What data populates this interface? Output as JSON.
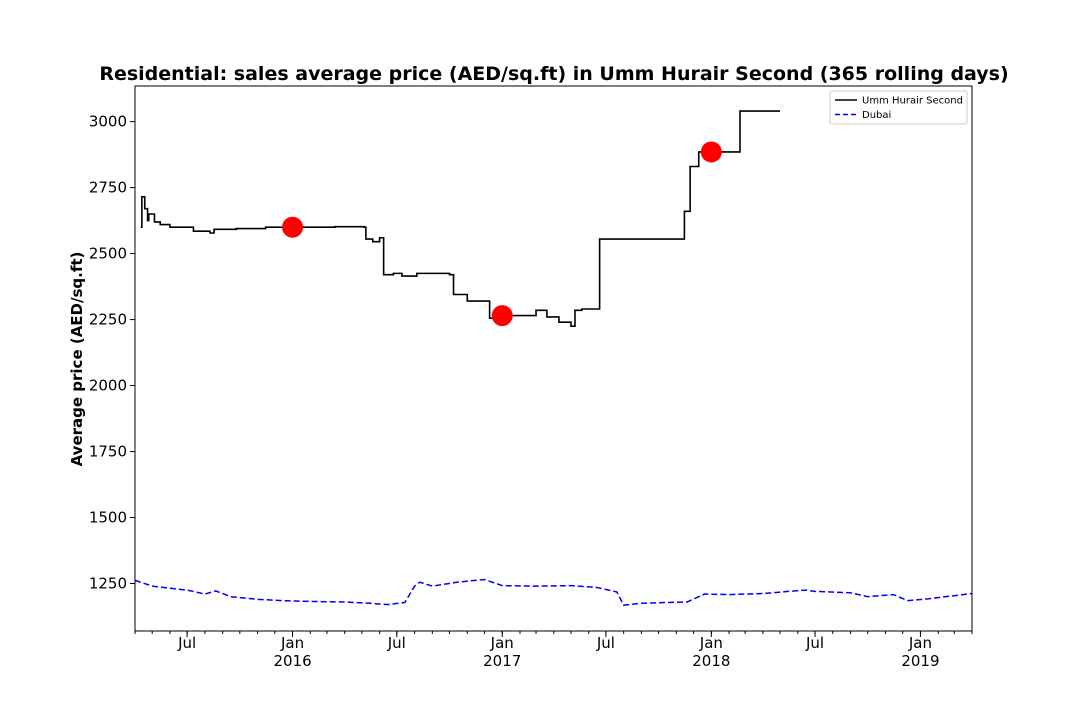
{
  "chart_data": {
    "type": "line",
    "title": "Residential: sales average price (AED/sq.ft) in Umm Hurair Second (365 rolling days)",
    "ylabel": "Average price (AED/sq.ft)",
    "xlabel": "",
    "xlim": [
      "2015-04-01",
      "2019-04-01"
    ],
    "ylim": [
      1070,
      3135
    ],
    "yticks": [
      1250,
      1500,
      1750,
      2000,
      2250,
      2500,
      2750,
      3000
    ],
    "xticks": [
      {
        "date": "2015-07-01",
        "label": "Jul",
        "year": ""
      },
      {
        "date": "2016-01-01",
        "label": "Jan",
        "year": "2016"
      },
      {
        "date": "2016-07-01",
        "label": "Jul",
        "year": ""
      },
      {
        "date": "2017-01-01",
        "label": "Jan",
        "year": "2017"
      },
      {
        "date": "2017-07-01",
        "label": "Jul",
        "year": ""
      },
      {
        "date": "2018-01-01",
        "label": "Jan",
        "year": "2018"
      },
      {
        "date": "2018-07-01",
        "label": "Jul",
        "year": ""
      },
      {
        "date": "2019-01-01",
        "label": "Jan",
        "year": "2019"
      }
    ],
    "legend_position": "top-right",
    "series": [
      {
        "name": "Umm Hurair Second",
        "color": "#000000",
        "style": "solid",
        "step": true,
        "points": [
          [
            "2015-04-11",
            2600
          ],
          [
            "2015-04-13",
            2715
          ],
          [
            "2015-04-18",
            2670
          ],
          [
            "2015-04-23",
            2625
          ],
          [
            "2015-04-25",
            2650
          ],
          [
            "2015-05-05",
            2620
          ],
          [
            "2015-05-15",
            2610
          ],
          [
            "2015-06-01",
            2600
          ],
          [
            "2015-07-12",
            2585
          ],
          [
            "2015-08-10",
            2578
          ],
          [
            "2015-08-17",
            2592
          ],
          [
            "2015-09-25",
            2595
          ],
          [
            "2015-11-15",
            2600
          ],
          [
            "2016-03-15",
            2602
          ],
          [
            "2016-05-05",
            2600
          ],
          [
            "2016-05-08",
            2555
          ],
          [
            "2016-05-20",
            2545
          ],
          [
            "2016-06-01",
            2560
          ],
          [
            "2016-06-08",
            2420
          ],
          [
            "2016-06-25",
            2425
          ],
          [
            "2016-07-10",
            2415
          ],
          [
            "2016-08-05",
            2425
          ],
          [
            "2016-10-01",
            2420
          ],
          [
            "2016-10-08",
            2345
          ],
          [
            "2016-11-01",
            2320
          ],
          [
            "2016-12-10",
            2255
          ],
          [
            "2017-01-01",
            2265
          ],
          [
            "2017-02-05",
            2265
          ],
          [
            "2017-03-01",
            2285
          ],
          [
            "2017-03-20",
            2260
          ],
          [
            "2017-04-10",
            2240
          ],
          [
            "2017-05-01",
            2225
          ],
          [
            "2017-05-08",
            2285
          ],
          [
            "2017-05-20",
            2290
          ],
          [
            "2017-06-20",
            2555
          ],
          [
            "2017-11-15",
            2660
          ],
          [
            "2017-11-25",
            2830
          ],
          [
            "2017-12-10",
            2885
          ],
          [
            "2018-02-01",
            2885
          ],
          [
            "2018-02-20",
            3040
          ],
          [
            "2018-05-01",
            3040
          ]
        ]
      },
      {
        "name": "Dubai",
        "color": "#0000ff",
        "style": "dashed",
        "step": false,
        "points": [
          [
            "2015-04-01",
            1262
          ],
          [
            "2015-05-01",
            1240
          ],
          [
            "2015-06-01",
            1232
          ],
          [
            "2015-07-01",
            1225
          ],
          [
            "2015-08-01",
            1210
          ],
          [
            "2015-08-20",
            1222
          ],
          [
            "2015-09-15",
            1200
          ],
          [
            "2015-11-01",
            1190
          ],
          [
            "2015-12-15",
            1185
          ],
          [
            "2016-02-01",
            1182
          ],
          [
            "2016-04-01",
            1180
          ],
          [
            "2016-05-15",
            1175
          ],
          [
            "2016-06-15",
            1170
          ],
          [
            "2016-07-15",
            1178
          ],
          [
            "2016-08-01",
            1240
          ],
          [
            "2016-08-10",
            1255
          ],
          [
            "2016-09-01",
            1240
          ],
          [
            "2016-10-15",
            1255
          ],
          [
            "2016-11-15",
            1262
          ],
          [
            "2016-12-01",
            1265
          ],
          [
            "2017-01-01",
            1242
          ],
          [
            "2017-03-01",
            1240
          ],
          [
            "2017-05-01",
            1242
          ],
          [
            "2017-06-15",
            1235
          ],
          [
            "2017-07-20",
            1218
          ],
          [
            "2017-08-01",
            1168
          ],
          [
            "2017-09-01",
            1175
          ],
          [
            "2017-10-15",
            1178
          ],
          [
            "2017-11-20",
            1180
          ],
          [
            "2017-12-20",
            1210
          ],
          [
            "2018-02-01",
            1208
          ],
          [
            "2018-04-01",
            1212
          ],
          [
            "2018-05-15",
            1220
          ],
          [
            "2018-06-15",
            1225
          ],
          [
            "2018-07-01",
            1220
          ],
          [
            "2018-09-01",
            1215
          ],
          [
            "2018-10-01",
            1200
          ],
          [
            "2018-11-15",
            1208
          ],
          [
            "2018-12-10",
            1185
          ],
          [
            "2019-01-15",
            1192
          ],
          [
            "2019-04-01",
            1212
          ]
        ]
      }
    ],
    "markers": {
      "color": "#ff0000",
      "points": [
        [
          "2016-01-01",
          2600
        ],
        [
          "2017-01-01",
          2265
        ],
        [
          "2018-01-01",
          2885
        ]
      ]
    }
  }
}
